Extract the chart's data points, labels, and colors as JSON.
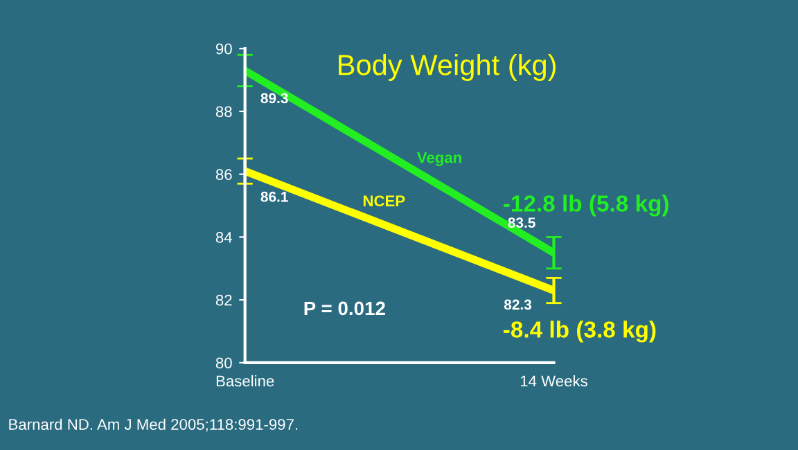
{
  "chart_data": {
    "type": "line",
    "title": "Body Weight (kg)",
    "categories": [
      "Baseline",
      "14 Weeks"
    ],
    "series": [
      {
        "name": "Vegan",
        "color": "#22ee22",
        "values": [
          89.3,
          83.5
        ],
        "errors": [
          0.5,
          0.5
        ],
        "value_labels": [
          "89.3",
          "83.5"
        ]
      },
      {
        "name": "NCEP",
        "color": "#ffff00",
        "values": [
          86.1,
          82.3
        ],
        "errors": [
          0.4,
          0.4
        ],
        "value_labels": [
          "86.1",
          "82.3"
        ]
      }
    ],
    "ylim": [
      80,
      90
    ],
    "yticks": [
      80,
      82,
      84,
      86,
      88,
      90
    ],
    "grid": false,
    "legend": false,
    "marker": "none",
    "line_style": "solid",
    "annotations": [
      "-12.8 lb (5.8 kg)",
      "-8.4 lb (3.8 kg)",
      "P = 0.012",
      "Barnard ND. Am J Med 2005;118:991-997."
    ]
  }
}
